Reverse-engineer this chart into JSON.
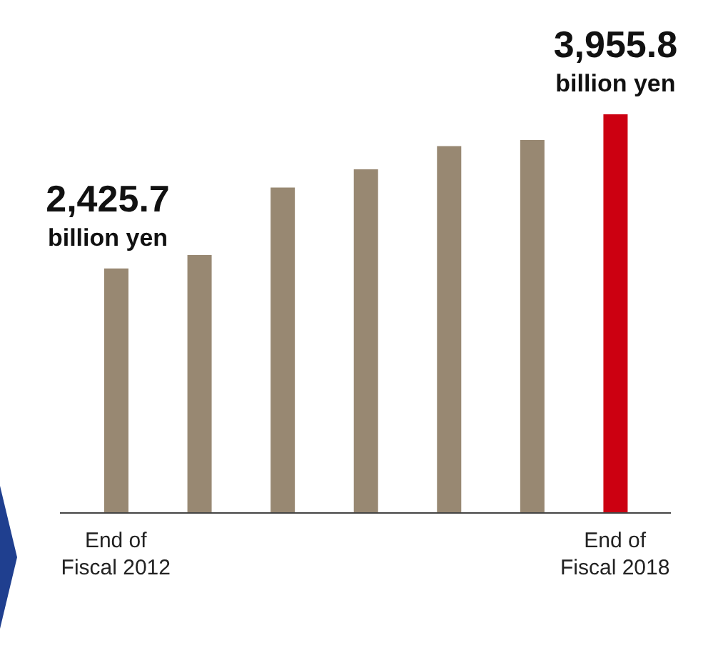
{
  "chart_data": {
    "type": "bar",
    "categories": [
      "End of Fiscal 2012",
      null,
      null,
      null,
      null,
      null,
      "End of Fiscal 2018"
    ],
    "values": [
      2425.7,
      2560,
      3230,
      3410,
      3640,
      3700,
      3955.8
    ],
    "colors": [
      "#988872",
      "#988872",
      "#988872",
      "#988872",
      "#988872",
      "#988872",
      "#cc0011"
    ],
    "value_labels": [
      "2,425.7",
      null,
      null,
      null,
      null,
      null,
      "3,955.8"
    ],
    "annotations": [
      {
        "text": "billion yen",
        "x": "End of Fiscal 2012",
        "y": 2425.7
      },
      {
        "text": "billion yen",
        "x": "End of Fiscal 2018",
        "y": 3955.8
      }
    ]
  }
}
